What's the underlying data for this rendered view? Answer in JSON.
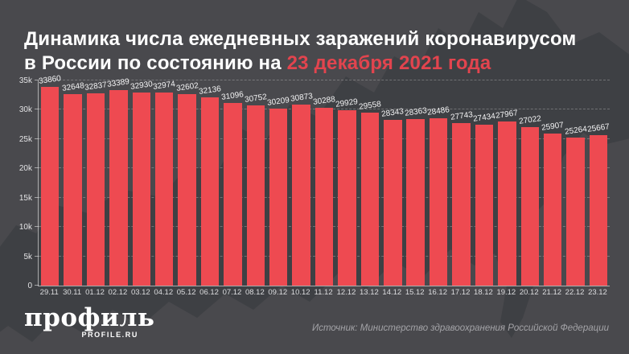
{
  "title": {
    "line1": "Динамика числа ежедневных заражений коронавирусом",
    "line2_white": "в России по состоянию на ",
    "line2_red": "23 декабря 2021 года"
  },
  "chart_data": {
    "type": "bar",
    "title": "Динамика числа ежедневных заражений коронавирусом в России по состоянию на 23 декабря 2021 года",
    "categories": [
      "29.11",
      "30.11",
      "01.12",
      "02.12",
      "03.12",
      "04.12",
      "05.12",
      "06.12",
      "07.12",
      "08.12",
      "09.12",
      "10.12",
      "11.12",
      "12.12",
      "13.12",
      "14.12",
      "15.12",
      "16.12",
      "17.12",
      "18.12",
      "19.12",
      "20.12",
      "21.12",
      "22.12",
      "23.12"
    ],
    "values": [
      33860,
      32648,
      32837,
      33389,
      32930,
      32974,
      32602,
      32136,
      31096,
      30752,
      30209,
      30873,
      30288,
      29929,
      29558,
      28343,
      28363,
      28486,
      27743,
      27434,
      27967,
      27022,
      25907,
      25264,
      25667
    ],
    "xlabel": "",
    "ylabel": "",
    "ylim": [
      0,
      35000
    ],
    "grid": true,
    "legend": "none",
    "bar_color": "#ee4a51",
    "y_ticks": [
      {
        "label": "0",
        "value": 0
      },
      {
        "label": "5k",
        "value": 5000
      },
      {
        "label": "10k",
        "value": 10000
      },
      {
        "label": "15k",
        "value": 15000
      },
      {
        "label": "20k",
        "value": 20000
      },
      {
        "label": "25k",
        "value": 25000
      },
      {
        "label": "30k",
        "value": 30000
      },
      {
        "label": "35k",
        "value": 35000
      }
    ]
  },
  "footer": {
    "logo_text": "профиль",
    "logo_sub": "PROFILE.RU",
    "source": "Источник: Министерство здравоохранения Российской Федерации"
  },
  "colors": {
    "background": "#49494d",
    "map_silhouette": "#3e4044",
    "bar": "#ee4a51",
    "title_accent": "#e2444e",
    "text": "#ffffff",
    "muted_text": "#a3a3a7"
  }
}
